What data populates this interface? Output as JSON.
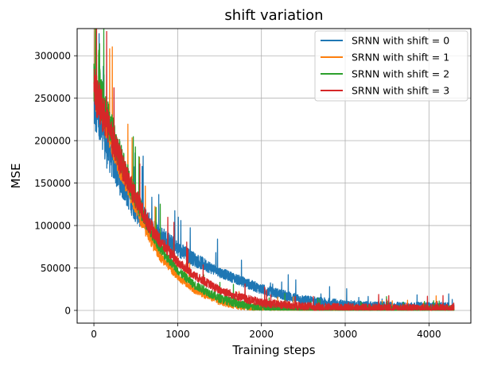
{
  "chart_data": {
    "type": "line",
    "title": "shift variation",
    "xlabel": "Training steps",
    "ylabel": "MSE",
    "xlim": [
      -200,
      4500
    ],
    "ylim": [
      -15000,
      332000
    ],
    "xticks": [
      0,
      1000,
      2000,
      3000,
      4000
    ],
    "yticks": [
      0,
      50000,
      100000,
      150000,
      200000,
      250000,
      300000
    ],
    "grid": true,
    "legend_position": "top-right",
    "series": [
      {
        "name": "SRNN with shift = 0",
        "color": "#1f77b4",
        "x": [
          0,
          100,
          200,
          300,
          400,
          500,
          600,
          700,
          800,
          1000,
          1200,
          1500,
          1800,
          2000,
          2500,
          3000,
          3500,
          4000,
          4300
        ],
        "y": [
          245000,
          205000,
          185000,
          160000,
          140000,
          120000,
          108000,
          97000,
          88000,
          72000,
          60000,
          45000,
          33000,
          25000,
          12000,
          6000,
          4000,
          3500,
          3500
        ]
      },
      {
        "name": "SRNN with shift = 1",
        "color": "#ff7f0e",
        "x": [
          0,
          100,
          200,
          300,
          400,
          500,
          600,
          700,
          800,
          1000,
          1200,
          1500,
          1800,
          2000,
          2500,
          3000,
          3500,
          4000,
          4300
        ],
        "y": [
          265000,
          240000,
          205000,
          175000,
          150000,
          125000,
          100000,
          80000,
          63000,
          40000,
          25000,
          11000,
          4500,
          2500,
          1000,
          500,
          400,
          400,
          400
        ]
      },
      {
        "name": "SRNN with shift = 2",
        "color": "#2ca02c",
        "x": [
          0,
          100,
          200,
          300,
          400,
          500,
          600,
          700,
          800,
          1000,
          1200,
          1500,
          1800,
          2000,
          2500,
          3000,
          3500,
          4000,
          4300
        ],
        "y": [
          268000,
          245000,
          215000,
          185000,
          158000,
          133000,
          110000,
          90000,
          72000,
          47000,
          30000,
          14000,
          6000,
          3000,
          1200,
          600,
          500,
          500,
          500
        ]
      },
      {
        "name": "SRNN with shift = 3",
        "color": "#d62728",
        "x": [
          0,
          100,
          200,
          300,
          400,
          500,
          600,
          700,
          800,
          1000,
          1200,
          1500,
          1800,
          2000,
          2500,
          3000,
          3500,
          4000,
          4300
        ],
        "y": [
          260000,
          235000,
          205000,
          180000,
          155000,
          132000,
          112000,
          95000,
          80000,
          57000,
          41000,
          24000,
          14000,
          9000,
          4500,
          3000,
          2500,
          2500,
          2500
        ]
      }
    ]
  }
}
